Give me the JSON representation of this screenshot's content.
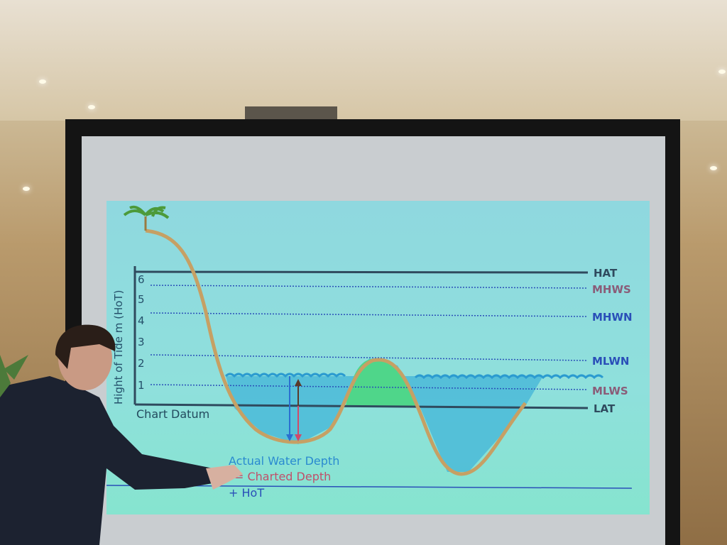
{
  "slide": {
    "y_axis_title": "Hight of Tide m (HoT)",
    "y_ticks": [
      "6",
      "5",
      "4",
      "3",
      "2",
      "1"
    ],
    "chart_datum_label": "Chart Datum",
    "levels": [
      {
        "name": "HAT",
        "color": "#2f4a5e"
      },
      {
        "name": "MHWS",
        "color": "#8a5c78"
      },
      {
        "name": "MHWN",
        "color": "#2a4fb8"
      },
      {
        "name": "MLWN",
        "color": "#2a4fb8"
      },
      {
        "name": "MLWS",
        "color": "#8a5c78"
      },
      {
        "name": "LAT",
        "color": "#2f4a5e"
      }
    ],
    "formula": {
      "actual": "Actual Water Depth",
      "charted": "= Charted Depth",
      "hot": "+ HoT"
    },
    "colors": {
      "water": "#41b4d8",
      "land": "#4fd68a",
      "seabed": "#c6a064"
    }
  }
}
